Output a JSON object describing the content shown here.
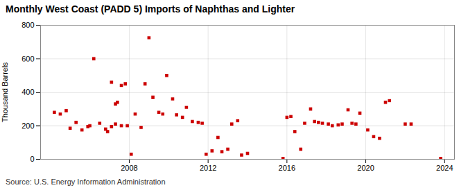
{
  "chart_data": {
    "type": "scatter",
    "title": "Monthly West Coast (PADD 5) Imports of Naphthas and Lighter",
    "ylabel": "Thousand Barrels",
    "annotations": [
      "Source: U.S. Energy Information Administration"
    ],
    "color": "#cc0000",
    "marker": "square",
    "grid": true,
    "xlim": [
      2003.5,
      2024.5
    ],
    "xticks": [
      2008,
      2012,
      2016,
      2020,
      2024
    ],
    "ylim": [
      0,
      800
    ],
    "yticks": [
      0,
      200,
      400,
      600,
      800
    ],
    "x": [
      2004.2,
      2004.5,
      2004.8,
      2005.0,
      2005.3,
      2005.6,
      2005.9,
      2006.0,
      2006.2,
      2006.5,
      2006.8,
      2006.9,
      2007.1,
      2007.3,
      2007.4,
      2007.6,
      2007.8,
      2007.1,
      2007.3,
      2007.6,
      2007.9,
      2008.1,
      2008.3,
      2008.6,
      2008.8,
      2009.0,
      2009.2,
      2009.5,
      2009.7,
      2009.9,
      2010.2,
      2010.4,
      2010.7,
      2010.9,
      2011.2,
      2011.5,
      2011.7,
      2011.9,
      2012.2,
      2012.5,
      2012.7,
      2013.0,
      2013.2,
      2013.5,
      2013.7,
      2014.0,
      2015.8,
      2016.0,
      2016.2,
      2016.4,
      2016.7,
      2016.9,
      2017.2,
      2017.4,
      2017.6,
      2017.8,
      2018.1,
      2018.3,
      2018.6,
      2018.8,
      2019.1,
      2019.3,
      2019.5,
      2019.7,
      2020.1,
      2020.4,
      2020.7,
      2021.0,
      2021.2,
      2022.0,
      2022.3,
      2023.8
    ],
    "values": [
      280,
      270,
      290,
      185,
      220,
      175,
      195,
      200,
      600,
      215,
      180,
      165,
      195,
      330,
      340,
      440,
      450,
      460,
      210,
      200,
      200,
      30,
      270,
      190,
      450,
      725,
      370,
      280,
      270,
      500,
      360,
      265,
      250,
      310,
      225,
      220,
      215,
      30,
      50,
      130,
      45,
      60,
      210,
      230,
      25,
      35,
      5,
      250,
      255,
      165,
      60,
      215,
      300,
      225,
      220,
      215,
      210,
      200,
      205,
      210,
      295,
      215,
      210,
      275,
      175,
      135,
      125,
      340,
      350,
      210,
      210,
      5
    ]
  }
}
